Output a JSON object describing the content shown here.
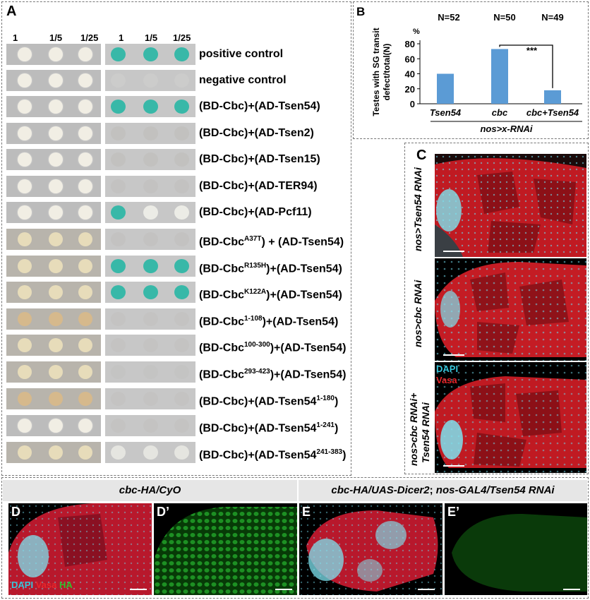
{
  "panels": {
    "a": "A",
    "b": "B",
    "c": "C",
    "d": "D",
    "d_prime": "D’",
    "e": "E",
    "e_prime": "E’"
  },
  "panel_a": {
    "dilutions": [
      "1",
      "1/5",
      "1/25",
      "1",
      "1/5",
      "1/25"
    ],
    "rows": [
      {
        "pre": "positive control",
        "sup": "",
        "post": ""
      },
      {
        "pre": "negative control",
        "sup": "",
        "post": ""
      },
      {
        "pre": "(BD-Cbc)+(AD-Tsen54)",
        "sup": "",
        "post": ""
      },
      {
        "pre": "(BD-Cbc)+(AD-Tsen2)",
        "sup": "",
        "post": ""
      },
      {
        "pre": "(BD-Cbc)+(AD-Tsen15)",
        "sup": "",
        "post": ""
      },
      {
        "pre": "(BD-Cbc)+(AD-TER94)",
        "sup": "",
        "post": ""
      },
      {
        "pre": "(BD-Cbc)+(AD-Pcf11)",
        "sup": "",
        "post": ""
      },
      {
        "pre": "(BD-Cbc",
        "sup": "A37T",
        "post": ") + (AD-Tsen54)"
      },
      {
        "pre": "(BD-Cbc",
        "sup": "R135H",
        "post": ")+(AD-Tsen54)"
      },
      {
        "pre": "(BD-Cbc",
        "sup": "K122A",
        "post": ")+(AD-Tsen54)"
      },
      {
        "pre": "(BD-Cbc",
        "sup": "1-108",
        "post": ")+(AD-Tsen54)"
      },
      {
        "pre": "(BD-Cbc",
        "sup": "100-300",
        "post": ")+(AD-Tsen54)"
      },
      {
        "pre": "(BD-Cbc",
        "sup": "293-423",
        "post": ")+(AD-Tsen54)"
      },
      {
        "pre": "(BD-Cbc)+(AD-Tsen54",
        "sup": "1-180",
        "post": ")"
      },
      {
        "pre": "(BD-Cbc)+(AD-Tsen54",
        "sup": "1-241",
        "post": ")"
      },
      {
        "pre": "(BD-Cbc)+(AD-Tsen54",
        "sup": "241-383",
        "post": ")"
      }
    ]
  },
  "chart_data": {
    "type": "bar",
    "categories": [
      "Tsen54",
      "cbc",
      "cbc+Tsen54"
    ],
    "values": [
      40,
      73,
      18
    ],
    "n_labels": [
      "N=52",
      "N=50",
      "N=49"
    ],
    "ylabel": "Testes with SG transit defect/total(N)",
    "unit": "%",
    "xlabel": "nos>x-RNAi",
    "ylim": [
      0,
      80
    ],
    "yticks": [
      "0",
      "20",
      "40",
      "60",
      "80"
    ],
    "bar_color": "#5b9bd5",
    "significance": "***",
    "grid": false
  },
  "panel_c": {
    "labels": [
      "nos>Tsen54 RNAi",
      "nos>cbc RNAi",
      "nos>cbc RNAi+",
      "Tsen54 RNAi"
    ],
    "legend_dapi": "DAPI",
    "legend_vasa": "Vasa"
  },
  "panel_de": {
    "genotype_left": "cbc-HA/CyO",
    "genotype_right_a": "cbc-HA/UAS-Dicer2",
    "genotype_right_sep": "; ",
    "genotype_right_b": "nos-GAL4/Tsen54 RNAi",
    "legend_dapi": "DAPI",
    "legend_vasa": "Vasa",
    "legend_ha": "HA"
  }
}
